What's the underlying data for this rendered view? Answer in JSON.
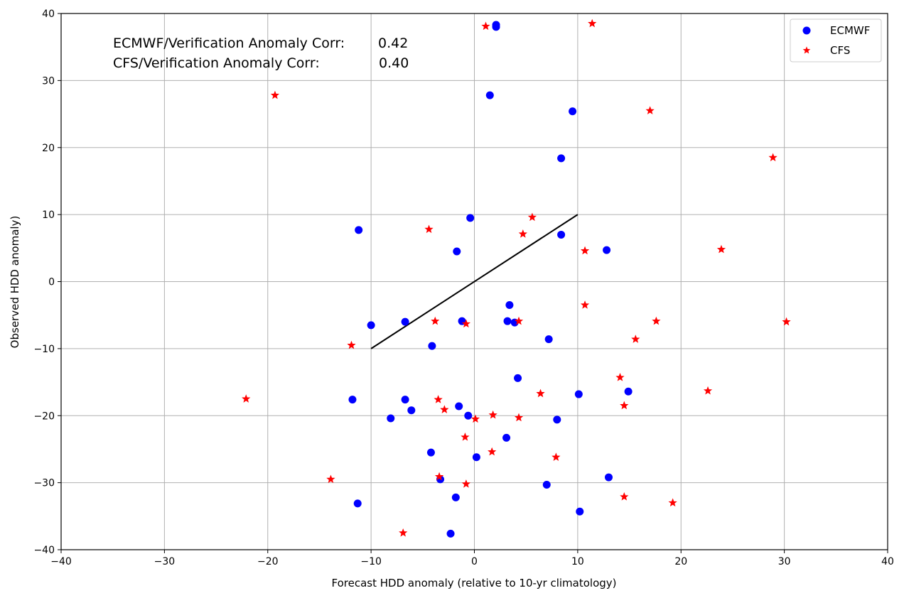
{
  "chart_data": {
    "type": "scatter",
    "xlabel": "Forecast HDD anomaly (relative to 10-yr climatology)",
    "ylabel": "Observed HDD anomaly)",
    "xlim": [
      -40,
      40
    ],
    "ylim": [
      -40,
      40
    ],
    "xticks": [
      -40,
      -30,
      -20,
      -10,
      0,
      10,
      20,
      30,
      40
    ],
    "yticks": [
      -40,
      -30,
      -20,
      -10,
      0,
      10,
      20,
      30,
      40
    ],
    "grid": true,
    "legend_position": "top-right",
    "annotations": [
      {
        "label": "ECMWF/Verification Anomaly Corr:",
        "value": "0.42"
      },
      {
        "label": "CFS/Verification Anomaly Corr:",
        "value": "0.40"
      }
    ],
    "reference_line": {
      "x": [
        -10,
        10
      ],
      "y": [
        -10,
        10
      ],
      "color": "#000000"
    },
    "series": [
      {
        "name": "ECMWF",
        "marker": "circle",
        "color": "#0000ff",
        "points": [
          [
            2.1,
            38.3
          ],
          [
            2.1,
            38.0
          ],
          [
            1.5,
            27.8
          ],
          [
            9.5,
            25.4
          ],
          [
            8.4,
            18.4
          ],
          [
            -11.2,
            7.7
          ],
          [
            -0.4,
            9.5
          ],
          [
            8.4,
            7.0
          ],
          [
            -1.7,
            4.5
          ],
          [
            12.8,
            4.7
          ],
          [
            3.4,
            -3.5
          ],
          [
            -10.0,
            -6.5
          ],
          [
            -6.7,
            -6.0
          ],
          [
            -1.2,
            -5.9
          ],
          [
            3.2,
            -5.9
          ],
          [
            3.9,
            -6.1
          ],
          [
            -4.1,
            -9.6
          ],
          [
            7.2,
            -8.6
          ],
          [
            4.2,
            -14.4
          ],
          [
            -11.8,
            -17.6
          ],
          [
            -6.7,
            -17.6
          ],
          [
            -6.1,
            -19.2
          ],
          [
            -1.5,
            -18.6
          ],
          [
            -0.6,
            -20.0
          ],
          [
            -8.1,
            -20.4
          ],
          [
            8.0,
            -20.6
          ],
          [
            10.1,
            -16.8
          ],
          [
            14.9,
            -16.4
          ],
          [
            3.1,
            -23.3
          ],
          [
            -4.2,
            -25.5
          ],
          [
            0.2,
            -26.2
          ],
          [
            -3.3,
            -29.5
          ],
          [
            7.0,
            -30.3
          ],
          [
            13.0,
            -29.2
          ],
          [
            -1.8,
            -32.2
          ],
          [
            -11.3,
            -33.1
          ],
          [
            10.2,
            -34.3
          ],
          [
            -2.3,
            -37.6
          ]
        ]
      },
      {
        "name": "CFS",
        "marker": "star",
        "color": "#ff0000",
        "points": [
          [
            1.1,
            38.1
          ],
          [
            11.4,
            38.5
          ],
          [
            -19.3,
            27.8
          ],
          [
            17.0,
            25.5
          ],
          [
            28.9,
            18.5
          ],
          [
            5.6,
            9.6
          ],
          [
            -4.4,
            7.8
          ],
          [
            4.7,
            7.1
          ],
          [
            10.7,
            4.6
          ],
          [
            23.9,
            4.8
          ],
          [
            10.7,
            -3.5
          ],
          [
            -3.8,
            -5.9
          ],
          [
            -0.8,
            -6.3
          ],
          [
            4.3,
            -5.9
          ],
          [
            17.6,
            -5.9
          ],
          [
            30.2,
            -6.0
          ],
          [
            -11.9,
            -9.5
          ],
          [
            15.6,
            -8.6
          ],
          [
            14.1,
            -14.3
          ],
          [
            22.6,
            -16.3
          ],
          [
            6.4,
            -16.7
          ],
          [
            -22.1,
            -17.5
          ],
          [
            -3.5,
            -17.6
          ],
          [
            -2.9,
            -19.1
          ],
          [
            14.5,
            -18.5
          ],
          [
            1.8,
            -19.9
          ],
          [
            0.1,
            -20.5
          ],
          [
            4.3,
            -20.3
          ],
          [
            -0.9,
            -23.2
          ],
          [
            1.7,
            -25.4
          ],
          [
            7.9,
            -26.2
          ],
          [
            -13.9,
            -29.5
          ],
          [
            -3.4,
            -29.1
          ],
          [
            -0.8,
            -30.2
          ],
          [
            14.5,
            -32.1
          ],
          [
            19.2,
            -33.0
          ],
          [
            -6.9,
            -37.5
          ]
        ]
      }
    ]
  }
}
